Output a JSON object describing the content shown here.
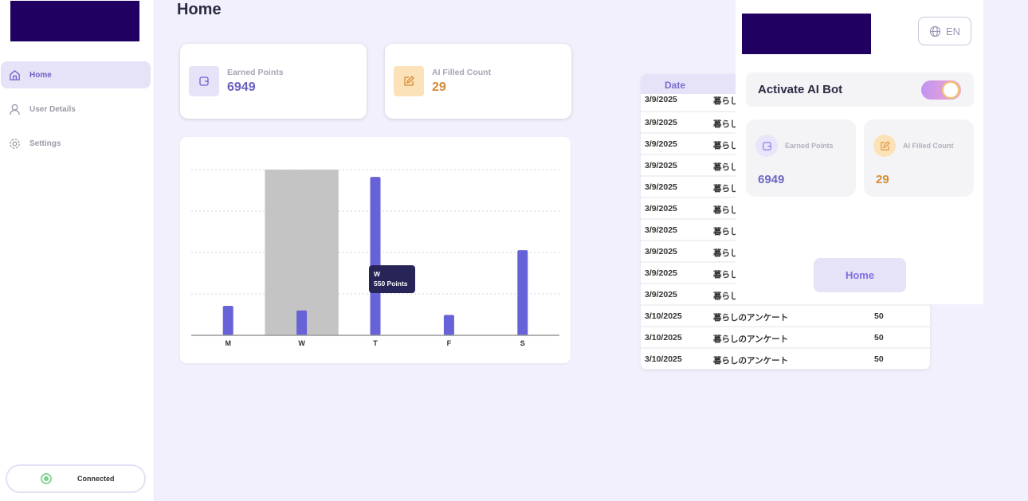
{
  "sidebar": {
    "items": [
      {
        "label": "Home",
        "icon": "home-icon",
        "active": true
      },
      {
        "label": "User Details",
        "icon": "user-icon"
      },
      {
        "label": "Settings",
        "icon": "gear-icon"
      }
    ],
    "status": "Connected"
  },
  "page": {
    "title": "Home"
  },
  "cards": {
    "earned_label": "Earned Points",
    "earned_value": "6949",
    "filled_label": "AI Filled Count",
    "filled_value": "29"
  },
  "colors": {
    "accent": "#6762d8",
    "orange": "#d48a35",
    "connected": "#7fcf8a"
  },
  "chart_data": {
    "type": "bar",
    "categories": [
      "M",
      "W",
      "T",
      "F",
      "S"
    ],
    "values": [
      650,
      550,
      3500,
      450,
      1880
    ],
    "ylim": [
      0,
      3660
    ],
    "grid": true,
    "highlighted": "W",
    "tooltip": {
      "title": "W",
      "text": "550 Points"
    }
  },
  "table": {
    "headers": [
      "Date",
      "",
      ""
    ],
    "rows": [
      {
        "date": "3/9/2025",
        "title": "暮らしのアンケート",
        "points": ""
      },
      {
        "date": "3/9/2025",
        "title": "暮らしのアンケート",
        "points": ""
      },
      {
        "date": "3/9/2025",
        "title": "暮らしのアンケート",
        "points": ""
      },
      {
        "date": "3/9/2025",
        "title": "暮らしのアンケート",
        "points": ""
      },
      {
        "date": "3/9/2025",
        "title": "暮らしのアンケート",
        "points": ""
      },
      {
        "date": "3/9/2025",
        "title": "暮らしのアンケート",
        "points": ""
      },
      {
        "date": "3/9/2025",
        "title": "暮らしのアンケート",
        "points": ""
      },
      {
        "date": "3/9/2025",
        "title": "暮らしのアンケート",
        "points": ""
      },
      {
        "date": "3/9/2025",
        "title": "暮らしのアンケート",
        "points": ""
      },
      {
        "date": "3/9/2025",
        "title": "暮らしのアンケート",
        "points": ""
      },
      {
        "date": "3/10/2025",
        "title": "暮らしのアンケート",
        "points": "50"
      },
      {
        "date": "3/10/2025",
        "title": "暮らしのアンケート",
        "points": "50"
      },
      {
        "date": "3/10/2025",
        "title": "暮らしのアンケート",
        "points": "50"
      }
    ]
  },
  "popup": {
    "language": "EN",
    "bot_label": "Activate AI Bot",
    "bot_enabled": true,
    "earned_label": "Earned Points",
    "earned_value": "6949",
    "filled_label": "AI Filled Count",
    "filled_value": "29",
    "home_button": "Home"
  }
}
